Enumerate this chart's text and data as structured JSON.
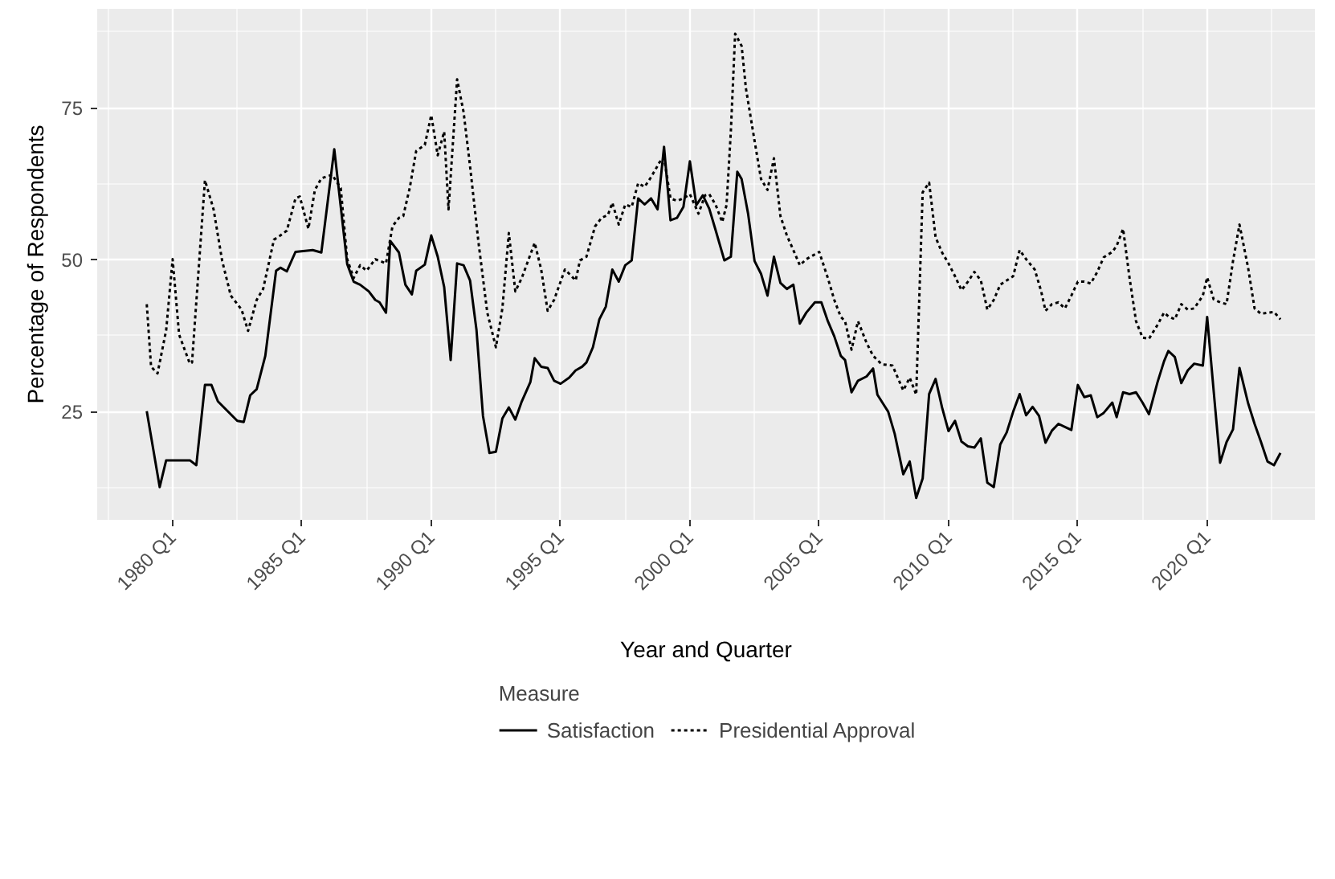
{
  "chart_data": {
    "type": "line",
    "xlabel": "Year and Quarter",
    "ylabel": "Percentage of Respondents",
    "legend_title": "Measure",
    "legend": "bottom",
    "grid": true,
    "xlim": [
      "1977-02",
      "2024-03"
    ],
    "ylim": [
      7.2,
      91.3
    ],
    "xticks": [
      {
        "value": "1980-01",
        "label": "1980 Q1"
      },
      {
        "value": "1985-01",
        "label": "1985 Q1"
      },
      {
        "value": "1990-01",
        "label": "1990 Q1"
      },
      {
        "value": "1995-01",
        "label": "1995 Q1"
      },
      {
        "value": "2000-01",
        "label": "2000 Q1"
      },
      {
        "value": "2005-01",
        "label": "2005 Q1"
      },
      {
        "value": "2010-01",
        "label": "2010 Q1"
      },
      {
        "value": "2015-01",
        "label": "2015 Q1"
      },
      {
        "value": "2020-01",
        "label": "2020 Q1"
      }
    ],
    "yticks": [
      25,
      50,
      75
    ],
    "series": [
      {
        "name": "Satisfaction",
        "color": "#000000",
        "line_style": "solid",
        "x": [
          "1979-01",
          "1979-07",
          "1979-10",
          "1980-09",
          "1980-12",
          "1981-04",
          "1981-07",
          "1981-10",
          "1982-07",
          "1982-10",
          "1983-01",
          "1983-04",
          "1983-08",
          "1984-01",
          "1984-03",
          "1984-06",
          "1984-10",
          "1985-06",
          "1985-10",
          "1986-04",
          "1986-10",
          "1987-01",
          "1987-04",
          "1987-08",
          "1987-11",
          "1988-01",
          "1988-04",
          "1988-06",
          "1988-10",
          "1989-01",
          "1989-04",
          "1989-06",
          "1989-10",
          "1990-01",
          "1990-04",
          "1990-07",
          "1990-10",
          "1991-01",
          "1991-04",
          "1991-07",
          "1991-10",
          "1992-01",
          "1992-04",
          "1992-07",
          "1992-10",
          "1993-01",
          "1993-04",
          "1993-07",
          "1993-11",
          "1994-01",
          "1994-04",
          "1994-07",
          "1994-10",
          "1995-01",
          "1995-05",
          "1995-08",
          "1995-11",
          "1996-01",
          "1996-04",
          "1996-07",
          "1996-10",
          "1997-01",
          "1997-04",
          "1997-07",
          "1997-10",
          "1998-01",
          "1998-04",
          "1998-07",
          "1998-10",
          "1999-01",
          "1999-04",
          "1999-07",
          "1999-10",
          "2000-01",
          "2000-04",
          "2000-07",
          "2000-10",
          "2001-01",
          "2001-05",
          "2001-08",
          "2001-11",
          "2002-01",
          "2002-04",
          "2002-07",
          "2002-10",
          "2003-01",
          "2003-04",
          "2003-07",
          "2003-10",
          "2004-01",
          "2004-04",
          "2004-07",
          "2004-11",
          "2005-02",
          "2005-05",
          "2005-08",
          "2005-11",
          "2006-01",
          "2006-04",
          "2006-07",
          "2006-11",
          "2007-02",
          "2007-04",
          "2007-09",
          "2007-12",
          "2008-04",
          "2008-07",
          "2008-10",
          "2009-01",
          "2009-04",
          "2009-07",
          "2009-10",
          "2010-01",
          "2010-04",
          "2010-07",
          "2010-10",
          "2011-01",
          "2011-04",
          "2011-07",
          "2011-10",
          "2012-01",
          "2012-04",
          "2012-07",
          "2012-10",
          "2013-01",
          "2013-04",
          "2013-07",
          "2013-10",
          "2014-01",
          "2014-04",
          "2014-07",
          "2014-10",
          "2015-01",
          "2015-04",
          "2015-07",
          "2015-10",
          "2016-01",
          "2016-05",
          "2016-07",
          "2016-10",
          "2017-01",
          "2017-04",
          "2017-07",
          "2017-10",
          "2018-02",
          "2018-05",
          "2018-07",
          "2018-10",
          "2019-01",
          "2019-04",
          "2019-07",
          "2019-11",
          "2020-01",
          "2020-04",
          "2020-07",
          "2020-10",
          "2021-01",
          "2021-04",
          "2021-08",
          "2021-11",
          "2022-02",
          "2022-05",
          "2022-08",
          "2022-11"
        ],
        "values": [
          25.1,
          12.6,
          17.0,
          17.0,
          16.2,
          29.4,
          29.4,
          26.7,
          23.5,
          23.3,
          27.7,
          28.7,
          34.2,
          48.2,
          48.7,
          48.1,
          51.3,
          51.6,
          51.2,
          68.2,
          49.3,
          46.4,
          45.9,
          44.8,
          43.4,
          43.0,
          41.3,
          53.1,
          51.2,
          45.9,
          44.3,
          48.2,
          49.2,
          54.0,
          50.5,
          45.5,
          33.5,
          49.4,
          49.1,
          46.6,
          38.4,
          24.3,
          18.2,
          18.4,
          23.9,
          25.7,
          23.7,
          26.7,
          29.9,
          33.8,
          32.4,
          32.2,
          30.1,
          29.6,
          30.6,
          31.8,
          32.4,
          33.1,
          35.6,
          40.2,
          42.3,
          48.4,
          46.4,
          49.1,
          49.9,
          60.1,
          59.1,
          60.1,
          58.3,
          68.6,
          56.5,
          56.9,
          58.7,
          66.2,
          59.0,
          60.6,
          58.4,
          54.8,
          49.9,
          50.5,
          64.5,
          63.3,
          57.6,
          49.8,
          47.7,
          44.1,
          50.5,
          46.2,
          45.2,
          45.9,
          39.5,
          41.3,
          43.0,
          43.0,
          39.9,
          37.4,
          34.2,
          33.5,
          28.2,
          30.1,
          30.8,
          32.1,
          27.8,
          25.0,
          21.4,
          14.7,
          16.8,
          10.8,
          14.0,
          27.9,
          30.4,
          25.7,
          21.8,
          23.5,
          20.1,
          19.3,
          19.1,
          20.6,
          13.3,
          12.6,
          19.6,
          21.6,
          25.0,
          27.9,
          24.4,
          25.8,
          24.3,
          19.9,
          21.9,
          23.0,
          22.5,
          22.0,
          29.4,
          27.4,
          27.7,
          24.1,
          24.8,
          26.5,
          24.1,
          28.2,
          27.9,
          28.2,
          26.5,
          24.6,
          29.9,
          33.3,
          35.0,
          34.0,
          29.7,
          31.8,
          32.9,
          32.6,
          40.6,
          28.5,
          16.6,
          20.0,
          22.1,
          32.2,
          26.4,
          23.0,
          20.0,
          16.8,
          16.2,
          18.2
        ]
      },
      {
        "name": "Presidential Approval",
        "color": "#000000",
        "line_style": "dotted",
        "x": [
          "1979-01",
          "1979-03",
          "1979-06",
          "1979-10",
          "1980-01",
          "1980-04",
          "1980-09",
          "1980-10",
          "1981-04",
          "1981-08",
          "1981-12",
          "1982-04",
          "1982-09",
          "1982-12",
          "1983-04",
          "1983-07",
          "1983-12",
          "1984-03",
          "1984-06",
          "1984-10",
          "1984-12",
          "1985-04",
          "1985-07",
          "1985-10",
          "1986-03",
          "1986-07",
          "1986-10",
          "1987-01",
          "1987-04",
          "1987-07",
          "1987-11",
          "1988-04",
          "1988-07",
          "1988-10",
          "1988-12",
          "1989-03",
          "1989-06",
          "1989-10",
          "1990-01",
          "1990-04",
          "1990-07",
          "1990-09",
          "1991-01",
          "1991-04",
          "1991-07",
          "1991-11",
          "1992-03",
          "1992-07",
          "1992-10",
          "1993-01",
          "1993-04",
          "1993-07",
          "1994-01",
          "1994-04",
          "1994-07",
          "1994-10",
          "1995-03",
          "1995-05",
          "1995-08",
          "1995-10",
          "1996-01",
          "1996-05",
          "1996-08",
          "1996-11",
          "1997-01",
          "1997-04",
          "1997-07",
          "1997-10",
          "1998-01",
          "1998-04",
          "1998-07",
          "1998-11",
          "1999-01",
          "1999-04",
          "1999-07",
          "1999-10",
          "2000-01",
          "2000-05",
          "2000-08",
          "2000-10",
          "2001-01",
          "2001-04",
          "2001-06",
          "2001-08",
          "2001-10",
          "2002-01",
          "2002-03",
          "2002-07",
          "2002-10",
          "2003-01",
          "2003-04",
          "2003-07",
          "2003-10",
          "2004-01",
          "2004-04",
          "2004-07",
          "2005-01",
          "2005-05",
          "2005-08",
          "2005-11",
          "2006-01",
          "2006-04",
          "2006-07",
          "2006-11",
          "2007-02",
          "2007-06",
          "2007-11",
          "2008-04",
          "2008-07",
          "2008-10",
          "2009-01",
          "2009-04",
          "2009-07",
          "2009-10",
          "2010-01",
          "2010-04",
          "2010-07",
          "2010-10",
          "2011-01",
          "2011-04",
          "2011-07",
          "2011-10",
          "2012-01",
          "2012-04",
          "2012-07",
          "2012-10",
          "2013-01",
          "2013-05",
          "2013-08",
          "2013-10",
          "2014-01",
          "2014-04",
          "2014-07",
          "2014-10",
          "2015-01",
          "2015-04",
          "2015-07",
          "2015-10",
          "2016-01",
          "2016-05",
          "2016-07",
          "2016-10",
          "2017-01",
          "2017-04",
          "2017-07",
          "2017-10",
          "2018-02",
          "2018-05",
          "2018-07",
          "2018-10",
          "2019-01",
          "2019-04",
          "2019-07",
          "2019-11",
          "2020-01",
          "2020-04",
          "2020-07",
          "2020-10",
          "2021-01",
          "2021-04",
          "2021-08",
          "2021-11",
          "2022-02",
          "2022-05",
          "2022-08",
          "2022-11"
        ],
        "values": [
          42.7,
          32.4,
          31.3,
          38.4,
          50.1,
          37.7,
          32.9,
          33.1,
          63.1,
          58.3,
          49.8,
          44.1,
          41.8,
          38.3,
          43.4,
          45.2,
          53.3,
          54.0,
          54.8,
          60.1,
          60.4,
          55.1,
          61.5,
          63.4,
          64.0,
          61.8,
          50.1,
          47.0,
          49.1,
          48.2,
          50.1,
          49.4,
          55.5,
          56.9,
          57.2,
          61.8,
          67.9,
          68.9,
          73.8,
          67.2,
          71.1,
          58.3,
          79.7,
          74.3,
          65.4,
          52.6,
          41.3,
          35.6,
          42.0,
          54.4,
          44.8,
          47.0,
          52.8,
          48.4,
          41.6,
          43.4,
          48.4,
          47.7,
          46.6,
          49.9,
          50.5,
          55.5,
          56.9,
          57.4,
          59.4,
          55.8,
          59.1,
          58.7,
          62.6,
          62.0,
          63.6,
          66.1,
          66.8,
          60.1,
          59.7,
          60.1,
          60.8,
          57.6,
          60.6,
          60.8,
          59.0,
          56.2,
          59.0,
          71.1,
          87.2,
          85.2,
          78.2,
          69.6,
          63.3,
          61.5,
          66.7,
          57.2,
          54.0,
          51.6,
          49.1,
          50.1,
          51.3,
          47.0,
          43.4,
          40.6,
          39.9,
          35.2,
          39.9,
          36.3,
          34.2,
          32.8,
          32.6,
          28.5,
          30.6,
          27.8,
          61.1,
          62.7,
          53.7,
          51.2,
          49.4,
          47.3,
          45.0,
          46.4,
          48.0,
          46.6,
          41.8,
          43.4,
          45.9,
          46.6,
          47.3,
          51.6,
          50.1,
          48.4,
          44.8,
          41.6,
          42.7,
          43.0,
          42.0,
          44.1,
          46.4,
          46.4,
          46.1,
          48.0,
          50.4,
          51.3,
          52.3,
          55.1,
          47.0,
          39.9,
          37.2,
          37.0,
          39.3,
          41.3,
          40.7,
          40.2,
          42.7,
          41.8,
          42.0,
          44.1,
          47.1,
          43.5,
          43.0,
          42.7,
          49.8,
          55.8,
          48.7,
          42.0,
          41.1,
          41.3,
          41.4,
          40.2
        ]
      }
    ]
  }
}
